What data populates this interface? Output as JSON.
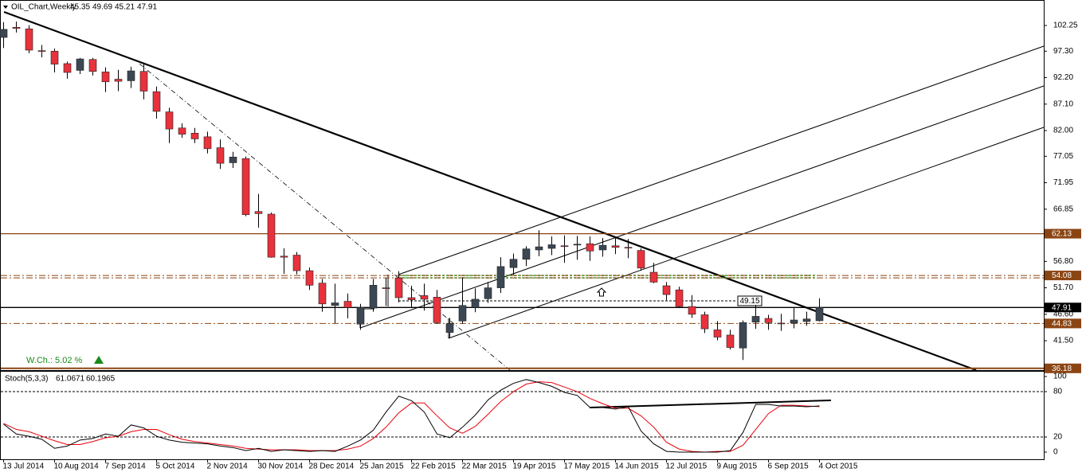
{
  "chart_data": [
    {
      "type": "candlestick",
      "title": "OIL_Chart,Weekly",
      "annotations": [
        "W.Ch.: 5.02 %",
        "49.15"
      ],
      "categories": [
        "13 Jul 2014",
        null,
        null,
        null,
        "10 Aug 2014",
        null,
        null,
        null,
        "7 Sep 2014",
        null,
        null,
        null,
        "5 Oct 2014",
        null,
        null,
        null,
        "2 Nov 2014",
        null,
        null,
        null,
        "30 Nov 2014",
        null,
        null,
        null,
        "28 Dec 2014",
        null,
        null,
        null,
        "25 Jan 2015",
        null,
        null,
        null,
        "22 Feb 2015",
        null,
        null,
        null,
        "22 Mar 2015",
        null,
        null,
        null,
        "19 Apr 2015",
        null,
        null,
        null,
        "17 May 2015",
        null,
        null,
        null,
        "14 Jun 2015",
        null,
        null,
        null,
        "12 Jul 2015",
        null,
        null,
        null,
        "9 Aug 2015",
        null,
        null,
        null,
        "6 Sep 2015",
        null,
        null,
        null,
        "4 Oct 2015"
      ],
      "open": [
        99.95,
        101.9,
        101.6,
        97.4,
        97.3,
        94.9,
        93.6,
        95.7,
        93.3,
        91.9,
        91.6,
        93.4,
        89.5,
        85.6,
        82.5,
        81.5,
        80.8,
        78.7,
        75.8,
        76.6,
        66.4,
        65.9,
        57.8,
        58.0,
        55.0,
        52.6,
        48.3,
        49.1,
        44.7,
        47.8,
        51.7,
        53.6,
        49.8,
        50.2,
        49.9,
        43.1,
        45.3,
        47.9,
        49.6,
        51.7,
        55.6,
        57.2,
        59.0,
        59.3,
        59.8,
        60.0,
        60.2,
        59.0,
        59.8,
        59.5,
        58.9,
        54.7,
        52.1,
        51.3,
        48.1,
        46.5,
        43.6,
        42.6,
        40.1,
        45.1,
        45.8,
        44.9,
        44.9,
        45.2,
        45.35
      ],
      "high": [
        102.9,
        103.0,
        102.3,
        98.5,
        97.8,
        95.3,
        96.0,
        96.0,
        94.2,
        93.7,
        94.3,
        95.0,
        90.5,
        86.4,
        83.4,
        82.5,
        81.8,
        80.3,
        77.9,
        77.0,
        69.8,
        66.2,
        59.3,
        58.6,
        55.6,
        53.4,
        52.5,
        50.6,
        48.6,
        53.4,
        53.6,
        54.9,
        52.1,
        52.5,
        51.3,
        45.9,
        53.7,
        51.6,
        52.8,
        57.6,
        58.3,
        59.7,
        62.8,
        61.6,
        61.8,
        61.7,
        61.6,
        61.3,
        61.6,
        61.1,
        59.3,
        56.5,
        52.8,
        51.9,
        50.3,
        47.1,
        45.3,
        43.6,
        45.4,
        48.4,
        46.5,
        46.7,
        47.8,
        47.1,
        49.69
      ],
      "low": [
        97.9,
        100.9,
        96.9,
        96.1,
        93.2,
        92.0,
        92.9,
        92.6,
        89.4,
        89.6,
        90.2,
        88.0,
        84.3,
        79.6,
        80.6,
        79.6,
        77.6,
        74.6,
        74.8,
        65.5,
        63.3,
        57.5,
        54.4,
        54.3,
        51.3,
        47.1,
        44.9,
        45.8,
        43.6,
        47.1,
        48.2,
        48.9,
        47.9,
        47.3,
        44.8,
        42.1,
        44.8,
        47.0,
        48.8,
        50.7,
        54.2,
        55.9,
        57.8,
        58.0,
        56.5,
        57.1,
        56.9,
        57.7,
        58.2,
        57.4,
        55.0,
        52.6,
        49.3,
        47.9,
        45.9,
        43.0,
        41.6,
        39.8,
        37.8,
        43.8,
        43.6,
        43.4,
        43.9,
        44.4,
        45.21
      ],
      "close": [
        101.5,
        101.7,
        97.5,
        97.3,
        94.8,
        93.2,
        95.8,
        93.4,
        91.4,
        91.5,
        93.5,
        89.6,
        85.7,
        82.3,
        81.3,
        80.4,
        78.5,
        75.7,
        76.9,
        65.8,
        66.0,
        57.6,
        57.6,
        55.0,
        52.2,
        48.6,
        48.8,
        47.9,
        47.9,
        52.2,
        51.6,
        49.8,
        49.4,
        49.5,
        45.0,
        44.8,
        48.3,
        49.5,
        51.7,
        55.8,
        57.2,
        59.2,
        59.6,
        60.0,
        59.7,
        60.1,
        58.8,
        59.9,
        59.5,
        59.4,
        55.5,
        52.8,
        50.4,
        48.1,
        46.6,
        43.8,
        42.2,
        40.2,
        45.0,
        46.2,
        45.0,
        44.8,
        45.5,
        45.7,
        47.91
      ],
      "up_color": "#3c4754",
      "down_color": "#e8323c",
      "ylim": [
        35.84,
        107.16
      ],
      "yticks": [
        102.25,
        {
          "value": 97.3,
          "label": "97.30"
        },
        {
          "value": 92.2,
          "label": "92.20"
        },
        {
          "value": 87.1,
          "label": "87.10"
        },
        {
          "value": 82,
          "label": "82.00"
        },
        77.05,
        71.95,
        66.85,
        {
          "value": 56.8,
          "label": "56.80"
        },
        {
          "value": 51.7,
          "label": "51.70"
        },
        {
          "value": 46.6,
          "label": "46.60"
        },
        {
          "value": 41.5,
          "label": "41.50"
        }
      ],
      "levels": [
        62.13,
        54.08,
        47.91,
        44.83,
        36.18
      ],
      "level_colors": [
        "#8b4513",
        "#8b4513",
        "#000000",
        "#8b4513",
        "#8b4513"
      ]
    },
    {
      "type": "line",
      "title": "Stoch(5,3,3)",
      "series": [
        {
          "color": "#000000",
          "values": [
            37,
            24,
            21,
            17,
            5,
            8,
            16,
            18,
            24,
            21,
            36,
            32,
            21,
            16,
            13,
            12,
            11,
            8,
            6,
            2,
            5,
            1,
            3,
            2,
            1,
            2,
            1,
            8,
            16,
            29,
            53,
            74,
            68,
            53,
            24,
            19,
            33,
            49,
            69,
            82,
            91,
            96,
            92,
            87,
            79,
            75,
            59,
            59,
            57,
            60,
            28,
            11,
            1,
            0,
            0,
            0,
            0,
            2,
            26,
            63,
            63,
            61,
            61,
            60,
            61.0671
          ]
        },
        {
          "color": "#e8000b",
          "values": [
            38,
            30,
            27,
            21,
            15,
            10,
            10,
            14,
            19,
            21,
            27,
            30,
            30,
            23,
            17,
            14,
            12,
            10,
            8,
            5,
            4,
            3,
            3,
            3,
            2,
            2,
            2,
            4,
            8,
            18,
            33,
            52,
            65,
            65,
            48,
            32,
            25,
            34,
            50,
            67,
            80,
            90,
            93,
            92,
            86,
            80,
            71,
            64,
            58,
            58,
            48,
            33,
            13,
            4,
            1,
            0,
            1,
            1,
            9,
            30,
            51,
            62,
            62,
            61,
            60.1965
          ]
        }
      ],
      "ylim": [
        -10.5,
        107.4
      ],
      "yticks": [
        100,
        80,
        20,
        0
      ],
      "dashed_levels": [
        80,
        20
      ]
    }
  ]
}
